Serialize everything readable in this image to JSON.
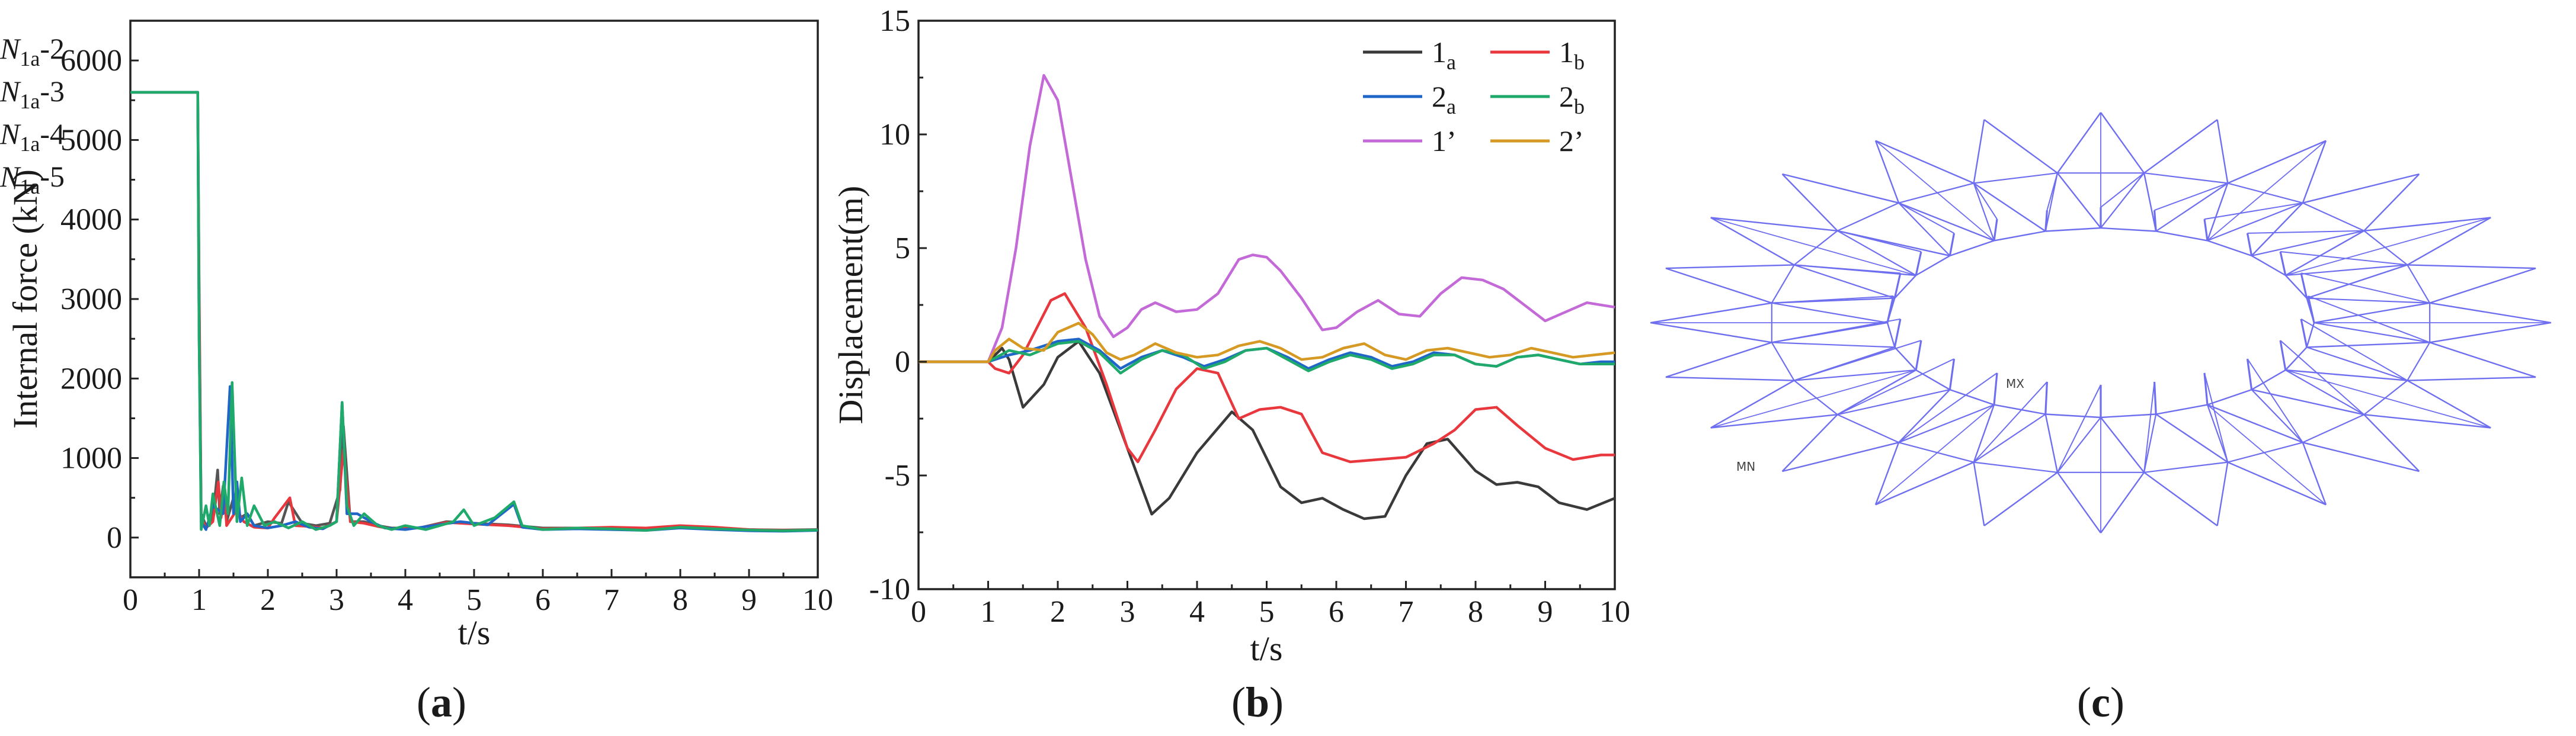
{
  "figure": {
    "panel_labels": [
      {
        "open": "(",
        "letter": "a",
        "close": ")"
      },
      {
        "open": "(",
        "letter": "b",
        "close": ")"
      },
      {
        "open": "(",
        "letter": "c",
        "close": ")"
      }
    ]
  },
  "chart_data": [
    {
      "id": "a",
      "type": "line",
      "title": "",
      "xlabel": "t/s",
      "ylabel": "Internal force (kN)",
      "xlim": [
        0,
        10
      ],
      "ylim": [
        -500,
        6500
      ],
      "xticks": [
        0,
        1,
        2,
        3,
        4,
        5,
        6,
        7,
        8,
        9,
        10
      ],
      "yticks": [
        0,
        1000,
        2000,
        3000,
        4000,
        5000,
        6000
      ],
      "legend_position": "top-right",
      "series": [
        {
          "name": "N1a-2",
          "label_main": "N",
          "label_sub": "1a",
          "label_suffix": "-2",
          "color": "#555555",
          "x": [
            0,
            0.98,
            1.0,
            1.03,
            1.1,
            1.2,
            1.27,
            1.3,
            1.35,
            1.4,
            1.5,
            1.6,
            1.7,
            1.8,
            2.0,
            2.2,
            2.3,
            2.5,
            2.7,
            2.9,
            3.05,
            3.1,
            3.2,
            3.4,
            3.6,
            3.8,
            4.2,
            4.6,
            5.0,
            5.5,
            6.0,
            6.5,
            7.0,
            7.5,
            8.0,
            8.5,
            9.0,
            9.5,
            10.0
          ],
          "y": [
            5600,
            5600,
            3200,
            300,
            150,
            250,
            850,
            300,
            650,
            200,
            500,
            250,
            300,
            150,
            200,
            180,
            450,
            180,
            150,
            180,
            600,
            1400,
            200,
            200,
            150,
            120,
            120,
            200,
            180,
            160,
            120,
            120,
            110,
            110,
            140,
            120,
            100,
            95,
            100
          ]
        },
        {
          "name": "N1a-3",
          "label_main": "N",
          "label_sub": "1a",
          "label_suffix": "-3",
          "color": "#e8383d",
          "x": [
            0,
            0.98,
            1.0,
            1.03,
            1.1,
            1.2,
            1.28,
            1.32,
            1.37,
            1.4,
            1.55,
            1.65,
            1.8,
            2.0,
            2.1,
            2.32,
            2.4,
            2.6,
            2.8,
            3.0,
            3.1,
            3.2,
            3.4,
            3.6,
            3.8,
            4.2,
            4.6,
            5.0,
            5.5,
            6.0,
            6.5,
            7.0,
            7.5,
            8.0,
            8.5,
            9.0,
            9.5,
            10.0
          ],
          "y": [
            5600,
            5600,
            3000,
            250,
            120,
            200,
            700,
            250,
            550,
            150,
            350,
            200,
            130,
            120,
            250,
            500,
            150,
            140,
            120,
            200,
            1100,
            200,
            180,
            140,
            110,
            120,
            190,
            170,
            150,
            110,
            120,
            130,
            120,
            150,
            130,
            100,
            90,
            95
          ]
        },
        {
          "name": "N1a-4",
          "label_main": "N",
          "label_sub": "1a",
          "label_suffix": "-4",
          "color": "#1f66c8",
          "x": [
            0,
            0.98,
            1.0,
            1.03,
            1.1,
            1.2,
            1.35,
            1.45,
            1.5,
            1.55,
            1.6,
            1.7,
            1.8,
            2.0,
            2.2,
            2.4,
            2.6,
            2.8,
            3.0,
            3.08,
            3.15,
            3.3,
            3.5,
            3.7,
            4.0,
            4.4,
            4.8,
            5.2,
            5.58,
            5.7,
            6.0,
            6.5,
            7.0,
            7.5,
            8.0,
            8.5,
            9.0,
            9.5,
            10.0
          ],
          "y": [
            5600,
            5600,
            2500,
            200,
            100,
            400,
            300,
            1900,
            300,
            700,
            200,
            300,
            150,
            120,
            150,
            200,
            130,
            110,
            200,
            1700,
            300,
            300,
            200,
            120,
            100,
            150,
            200,
            160,
            420,
            130,
            100,
            110,
            100,
            90,
            120,
            100,
            85,
            80,
            90
          ]
        },
        {
          "name": "N1a-5",
          "label_main": "N",
          "label_sub": "1a",
          "label_suffix": "-5",
          "color": "#1faa6b",
          "x": [
            0,
            0.98,
            1.0,
            1.03,
            1.1,
            1.15,
            1.2,
            1.3,
            1.36,
            1.42,
            1.48,
            1.55,
            1.62,
            1.7,
            1.8,
            1.95,
            2.1,
            2.3,
            2.5,
            2.7,
            2.9,
            3.0,
            3.08,
            3.15,
            3.25,
            3.4,
            3.6,
            3.8,
            4.0,
            4.3,
            4.7,
            4.85,
            5.0,
            5.3,
            5.58,
            5.7,
            6.0,
            6.5,
            7.0,
            7.5,
            8.0,
            8.5,
            9.0,
            9.5,
            10.0
          ],
          "y": [
            5600,
            5600,
            2500,
            100,
            400,
            150,
            550,
            150,
            700,
            300,
            1950,
            200,
            750,
            150,
            400,
            150,
            200,
            120,
            200,
            100,
            150,
            200,
            1700,
            400,
            150,
            300,
            150,
            100,
            150,
            100,
            200,
            350,
            150,
            250,
            450,
            150,
            100,
            120,
            110,
            90,
            130,
            110,
            95,
            85,
            95
          ]
        }
      ]
    },
    {
      "id": "b",
      "type": "line",
      "title": "",
      "xlabel": "t/s",
      "ylabel": "Displacement(m)",
      "xlim": [
        0,
        10
      ],
      "ylim": [
        -10,
        15
      ],
      "xticks": [
        0,
        1,
        2,
        3,
        4,
        5,
        6,
        7,
        8,
        9,
        10
      ],
      "yticks": [
        -10,
        -5,
        0,
        5,
        10,
        15
      ],
      "legend_position": "top-right",
      "series": [
        {
          "name": "1a",
          "label_main": "1",
          "label_sub": "a",
          "color": "#3a3a3a",
          "x": [
            0,
            1.0,
            1.2,
            1.3,
            1.5,
            1.8,
            2.0,
            2.3,
            2.6,
            3.0,
            3.35,
            3.6,
            4.0,
            4.5,
            4.8,
            5.2,
            5.5,
            5.8,
            6.1,
            6.4,
            6.7,
            7.0,
            7.3,
            7.6,
            8.0,
            8.3,
            8.6,
            8.9,
            9.2,
            9.6,
            10.0
          ],
          "y": [
            0,
            0,
            0.6,
            0.1,
            -2.0,
            -1.0,
            0.2,
            0.9,
            -0.5,
            -3.8,
            -6.7,
            -6.0,
            -4.0,
            -2.2,
            -3.0,
            -5.5,
            -6.2,
            -6.0,
            -6.5,
            -6.9,
            -6.8,
            -5.0,
            -3.6,
            -3.4,
            -4.8,
            -5.4,
            -5.3,
            -5.5,
            -6.2,
            -6.5,
            -6.0
          ]
        },
        {
          "name": "1b",
          "label_main": "1",
          "label_sub": "b",
          "color": "#e8383d",
          "x": [
            0,
            1.0,
            1.1,
            1.3,
            1.5,
            1.7,
            1.9,
            2.1,
            2.4,
            2.7,
            3.0,
            3.15,
            3.4,
            3.7,
            4.0,
            4.3,
            4.6,
            4.9,
            5.2,
            5.5,
            5.8,
            6.2,
            6.6,
            7.0,
            7.4,
            7.7,
            8.0,
            8.3,
            8.6,
            9.0,
            9.4,
            9.8,
            10.0
          ],
          "y": [
            0,
            0,
            -0.3,
            -0.5,
            0.3,
            1.5,
            2.7,
            3.0,
            1.5,
            -1.0,
            -3.8,
            -4.4,
            -3.0,
            -1.2,
            -0.3,
            -0.5,
            -2.5,
            -2.1,
            -2.0,
            -2.3,
            -4.0,
            -4.4,
            -4.3,
            -4.2,
            -3.6,
            -3.0,
            -2.1,
            -2.0,
            -2.8,
            -3.8,
            -4.3,
            -4.1,
            -4.1
          ]
        },
        {
          "name": "2a",
          "label_main": "2",
          "label_sub": "a",
          "color": "#1f66c8",
          "x": [
            0,
            1.0,
            1.3,
            1.6,
            2.0,
            2.3,
            2.6,
            2.9,
            3.2,
            3.5,
            3.8,
            4.1,
            4.4,
            4.7,
            5.0,
            5.3,
            5.6,
            5.9,
            6.2,
            6.5,
            6.8,
            7.1,
            7.4,
            7.7,
            8.0,
            8.3,
            8.6,
            8.9,
            9.2,
            9.5,
            9.8,
            10.0
          ],
          "y": [
            0,
            0,
            0.3,
            0.5,
            0.9,
            1.0,
            0.5,
            -0.3,
            0.2,
            0.5,
            0.2,
            -0.2,
            0.1,
            0.5,
            0.6,
            0.2,
            -0.3,
            0.1,
            0.4,
            0.2,
            -0.2,
            0.0,
            0.4,
            0.3,
            -0.1,
            -0.2,
            0.2,
            0.3,
            0.1,
            -0.1,
            0.0,
            0.0
          ]
        },
        {
          "name": "2b",
          "label_main": "2",
          "label_sub": "b",
          "color": "#1faa6b",
          "x": [
            0,
            1.0,
            1.3,
            1.6,
            2.0,
            2.3,
            2.6,
            2.9,
            3.2,
            3.5,
            3.8,
            4.1,
            4.4,
            4.7,
            5.0,
            5.3,
            5.6,
            5.9,
            6.2,
            6.5,
            6.8,
            7.1,
            7.4,
            7.7,
            8.0,
            8.3,
            8.6,
            8.9,
            9.2,
            9.5,
            9.8,
            10.0
          ],
          "y": [
            0,
            0,
            0.5,
            0.3,
            0.8,
            0.9,
            0.4,
            -0.5,
            0.1,
            0.5,
            0.3,
            -0.3,
            0.0,
            0.5,
            0.6,
            0.1,
            -0.4,
            0.0,
            0.3,
            0.1,
            -0.3,
            -0.1,
            0.3,
            0.3,
            -0.1,
            -0.2,
            0.2,
            0.3,
            0.1,
            -0.1,
            -0.1,
            -0.1
          ]
        },
        {
          "name": "1'",
          "label_main": "1’",
          "label_sub": "",
          "color": "#c46ad8",
          "x": [
            0,
            1.0,
            1.2,
            1.4,
            1.6,
            1.8,
            2.0,
            2.2,
            2.4,
            2.6,
            2.8,
            3.0,
            3.2,
            3.4,
            3.7,
            4.0,
            4.3,
            4.6,
            4.8,
            5.0,
            5.2,
            5.5,
            5.8,
            6.0,
            6.3,
            6.6,
            6.9,
            7.2,
            7.5,
            7.8,
            8.1,
            8.4,
            8.7,
            9.0,
            9.3,
            9.6,
            10.0
          ],
          "y": [
            0,
            0,
            1.5,
            5.0,
            9.5,
            12.6,
            11.5,
            8.0,
            4.5,
            2.0,
            1.1,
            1.5,
            2.3,
            2.6,
            2.2,
            2.3,
            3.0,
            4.5,
            4.7,
            4.6,
            4.0,
            2.8,
            1.4,
            1.5,
            2.2,
            2.7,
            2.1,
            2.0,
            3.0,
            3.7,
            3.6,
            3.2,
            2.5,
            1.8,
            2.2,
            2.6,
            2.4
          ]
        },
        {
          "name": "2'",
          "label_main": "2’",
          "label_sub": "",
          "color": "#d69a24",
          "x": [
            0,
            1.0,
            1.1,
            1.3,
            1.5,
            1.8,
            2.0,
            2.3,
            2.5,
            2.7,
            2.9,
            3.1,
            3.4,
            3.7,
            4.0,
            4.3,
            4.6,
            4.9,
            5.2,
            5.5,
            5.8,
            6.1,
            6.4,
            6.7,
            7.0,
            7.3,
            7.6,
            7.9,
            8.2,
            8.5,
            8.8,
            9.1,
            9.4,
            9.7,
            10.0
          ],
          "y": [
            0,
            0,
            0.5,
            1.0,
            0.6,
            0.5,
            1.3,
            1.7,
            1.2,
            0.4,
            0.1,
            0.3,
            0.8,
            0.4,
            0.2,
            0.3,
            0.7,
            0.9,
            0.6,
            0.1,
            0.2,
            0.6,
            0.8,
            0.3,
            0.1,
            0.5,
            0.6,
            0.4,
            0.2,
            0.3,
            0.6,
            0.4,
            0.2,
            0.3,
            0.4
          ]
        }
      ]
    }
  ],
  "panel_c": {
    "type": "structure_wireframe",
    "labels": {
      "mx": "MX",
      "mn": "MN"
    },
    "line_color": "#6e6ef0",
    "outer_nodes": 24
  }
}
